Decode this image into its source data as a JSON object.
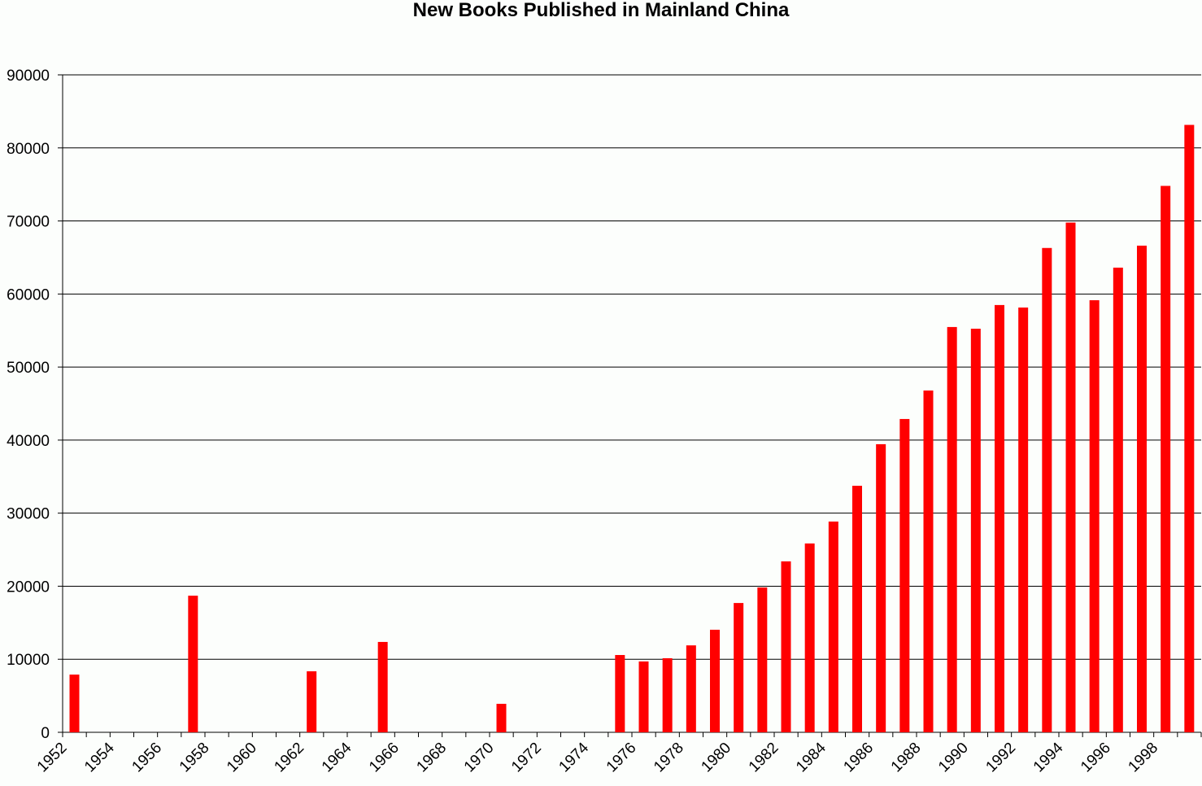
{
  "chart_data": {
    "type": "bar",
    "title": "New Books Published in Mainland China",
    "xlabel": "",
    "ylabel": "",
    "ylim": [
      0,
      90000
    ],
    "yticks": [
      0,
      10000,
      20000,
      30000,
      40000,
      50000,
      60000,
      70000,
      80000,
      90000
    ],
    "grid": true,
    "bar_color": "#ff0000",
    "categories": [
      "1952",
      "1953",
      "1954",
      "1955",
      "1956",
      "1957",
      "1958",
      "1959",
      "1960",
      "1961",
      "1962",
      "1963",
      "1964",
      "1965",
      "1966",
      "1967",
      "1968",
      "1969",
      "1970",
      "1971",
      "1972",
      "1973",
      "1974",
      "1975",
      "1976",
      "1977",
      "1978",
      "1979",
      "1980",
      "1981",
      "1982",
      "1983",
      "1984",
      "1985",
      "1986",
      "1987",
      "1988",
      "1989",
      "1990",
      "1991",
      "1992",
      "1993",
      "1994",
      "1995",
      "1996",
      "1997",
      "1998",
      "1999"
    ],
    "xtick_labels": [
      "1952",
      "1954",
      "1956",
      "1958",
      "1960",
      "1962",
      "1964",
      "1966",
      "1968",
      "1970",
      "1972",
      "1974",
      "1976",
      "1978",
      "1980",
      "1982",
      "1984",
      "1986",
      "1988",
      "1990",
      "1992",
      "1994",
      "1996",
      "1998"
    ],
    "values": [
      7900,
      0,
      0,
      0,
      0,
      18700,
      0,
      0,
      0,
      0,
      8350,
      0,
      0,
      12370,
      0,
      0,
      0,
      0,
      3900,
      0,
      0,
      0,
      0,
      10580,
      9700,
      10140,
      11900,
      14040,
      17700,
      19830,
      23400,
      25850,
      28850,
      33750,
      39440,
      42890,
      46790,
      55480,
      55250,
      58490,
      58150,
      66300,
      69780,
      59150,
      63610,
      66620,
      74800,
      83150
    ]
  }
}
